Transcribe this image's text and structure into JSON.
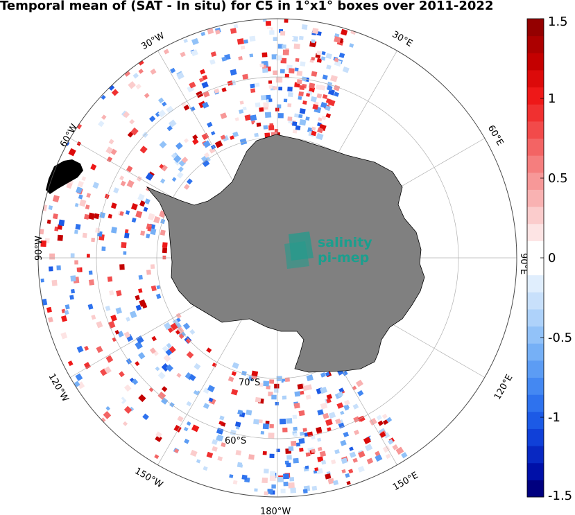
{
  "title": "Temporal mean of (SAT - In situ) for C5 in 1°x1° boxes over 2011-2022",
  "logo": {
    "line1": "salinity",
    "line2": "pi-mep",
    "icon": "pi-mep-logo-icon"
  },
  "colors": {
    "land": "#808080",
    "ocean": "#ffffff",
    "grid": "#b0b0b0",
    "logo": "#1a9f8e"
  },
  "lon_labels": [
    {
      "id": "30w",
      "text": "30°W"
    },
    {
      "id": "30e",
      "text": "30°E"
    },
    {
      "id": "60w",
      "text": "60°W"
    },
    {
      "id": "60e",
      "text": "60°E"
    },
    {
      "id": "90w",
      "text": "90°W"
    },
    {
      "id": "90e",
      "text": "90°E"
    },
    {
      "id": "120w",
      "text": "120°W"
    },
    {
      "id": "120e",
      "text": "120°E"
    },
    {
      "id": "150w",
      "text": "150°W"
    },
    {
      "id": "150e",
      "text": "150°E"
    },
    {
      "id": "180w",
      "text": "180°W"
    }
  ],
  "lat_labels": [
    {
      "id": "70s",
      "text": "70°S"
    },
    {
      "id": "60s",
      "text": "60°S"
    }
  ],
  "colorbar": {
    "min": -1.5,
    "max": 1.5,
    "tick_labels": [
      "1.5",
      "1",
      "0.5",
      "0",
      "-0.5",
      "-1",
      "-1.5"
    ],
    "colors": [
      "#00007f",
      "#0010a8",
      "#0828c2",
      "#1040d8",
      "#1c5ae6",
      "#2e72ee",
      "#4488f2",
      "#5c9cf4",
      "#76b0f6",
      "#92c2f8",
      "#aed2fa",
      "#c8e0fb",
      "#e0eefd",
      "#ffffff",
      "#ffffff",
      "#fde4e4",
      "#fbcccc",
      "#f9b2b2",
      "#f79898",
      "#f57e7e",
      "#f36464",
      "#f24a4a",
      "#f03030",
      "#ee1818",
      "#dc0a0a",
      "#c40000",
      "#ac0000",
      "#940000"
    ]
  }
}
